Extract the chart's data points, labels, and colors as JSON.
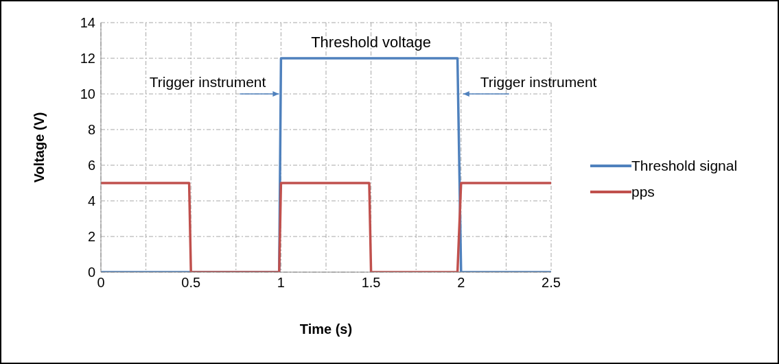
{
  "chart_data": {
    "type": "line",
    "xlabel": "Time (s)",
    "ylabel": "Voltage (V)",
    "xlim": [
      0,
      2.5
    ],
    "xticks": [
      0,
      {
        "value": 0.25,
        "label": null
      },
      0.5,
      {
        "value": 0.75,
        "label": null
      },
      1,
      {
        "value": 1.25,
        "label": null
      },
      1.5,
      {
        "value": 1.75,
        "label": null
      },
      2,
      {
        "value": 2.25,
        "label": null
      },
      2.5
    ],
    "ylim": [
      0,
      14
    ],
    "yticks": [
      0,
      2,
      4,
      6,
      8,
      10,
      12,
      14
    ],
    "grid": true,
    "legend": "right",
    "marker": "none",
    "line_style": "solid",
    "series": [
      {
        "name": "Threshold signal",
        "color": "#4f81bd",
        "x": [
          0,
          0.99,
          1.0,
          1.98,
          2.0,
          2.5
        ],
        "values": [
          0,
          0,
          12,
          12,
          0,
          0
        ]
      },
      {
        "name": "pps",
        "color": "#c0504d",
        "x": [
          0,
          0.49,
          0.5,
          0.99,
          1.0,
          1.49,
          1.5,
          1.98,
          2.0,
          2.5
        ],
        "values": [
          5,
          5,
          0,
          0,
          5,
          5,
          0,
          0,
          5,
          5
        ]
      }
    ],
    "annotations": [
      {
        "text": "Threshold voltage",
        "x": 1.5,
        "y": 12
      },
      {
        "text": "Trigger instrument",
        "x": 1,
        "y": 10
      },
      {
        "text": "Trigger instrument",
        "x": 2,
        "y": 10
      }
    ]
  }
}
